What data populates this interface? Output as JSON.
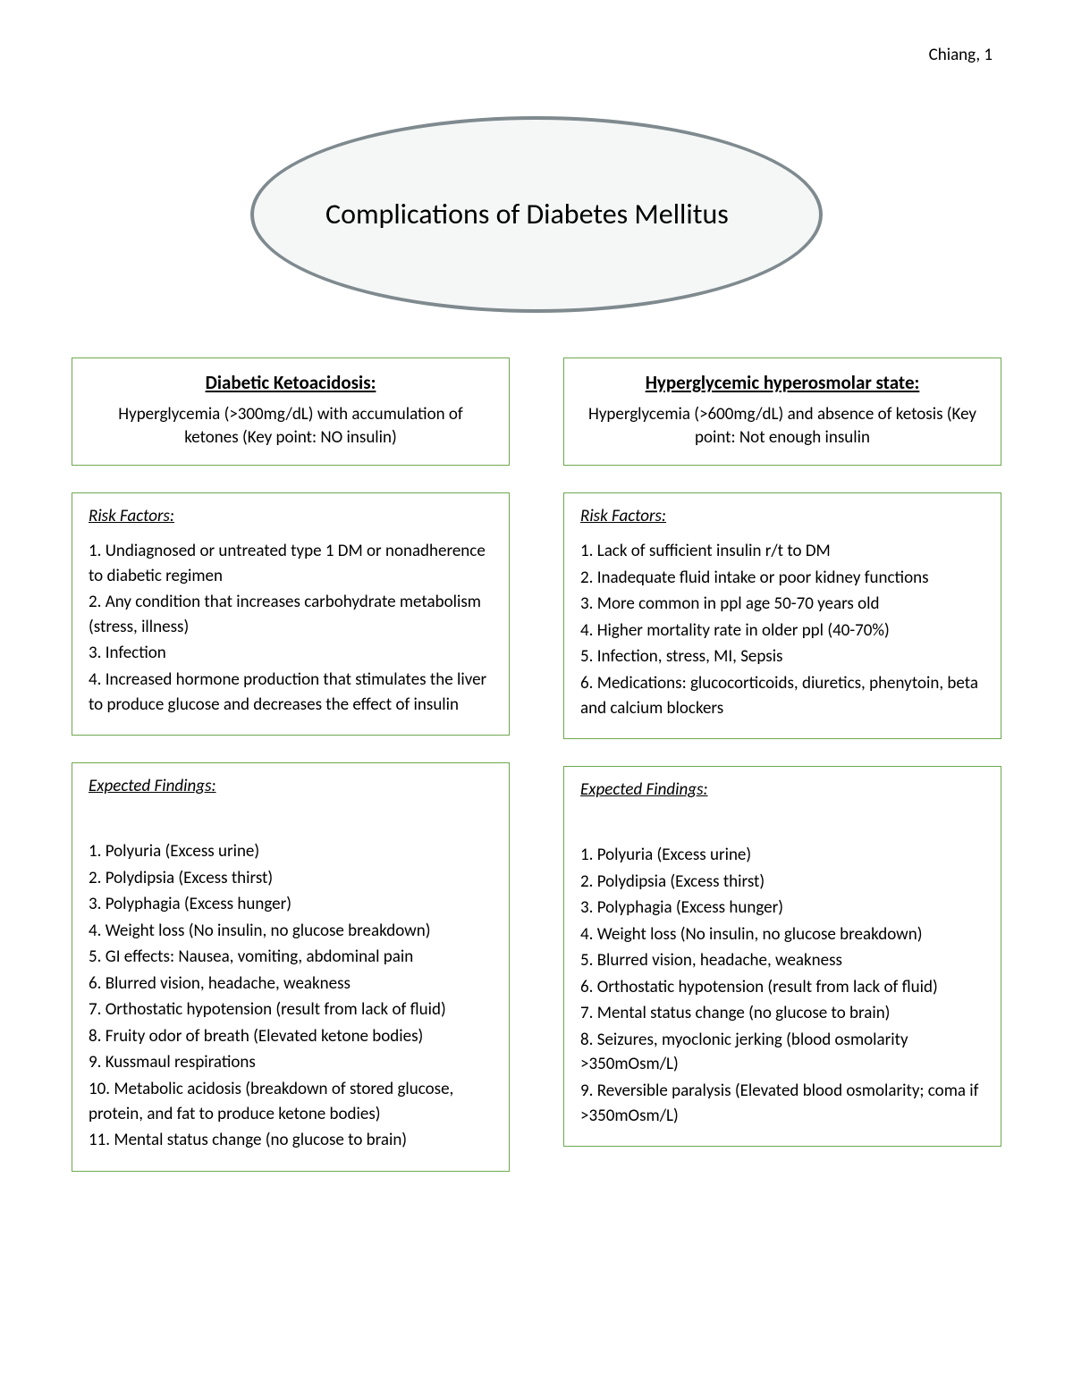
{
  "header": {
    "text": "Chiang, 1"
  },
  "title": {
    "text": "Complications of Diabetes Mellitus"
  },
  "colors": {
    "ellipse_border": "#7f8a8f",
    "ellipse_fill": "#f5f7f7",
    "box_border": "#6fa84f",
    "text": "#000000",
    "background": "#ffffff"
  },
  "left": {
    "def": {
      "title": "Diabetic Ketoacidosis:",
      "desc": "Hyperglycemia (>300mg/dL) with accumulation of ketones (Key point: NO insulin)"
    },
    "risk": {
      "title": "Risk Factors:",
      "items": [
        "1. Undiagnosed or untreated type 1 DM or nonadherence to diabetic regimen",
        "2. Any condition that increases carbohydrate metabolism (stress, illness)",
        "3. Infection",
        "4. Increased hormone production that stimulates the liver to produce glucose and decreases the effect of insulin"
      ]
    },
    "findings": {
      "title": "Expected Findings:",
      "items": [
        "1. Polyuria (Excess urine)",
        "2. Polydipsia (Excess thirst)",
        "3. Polyphagia (Excess hunger)",
        "4. Weight loss (No insulin, no glucose breakdown)",
        "5. GI effects: Nausea, vomiting, abdominal pain",
        "6. Blurred vision, headache, weakness",
        "7. Orthostatic hypotension (result from lack of fluid)",
        "8. Fruity odor of breath (Elevated ketone bodies)",
        "9. Kussmaul respirations",
        "10. Metabolic acidosis (breakdown of stored glucose, protein, and fat to produce ketone bodies)",
        "11. Mental status change (no glucose to brain)"
      ]
    }
  },
  "right": {
    "def": {
      "title": "Hyperglycemic hyperosmolar state:",
      "desc": "Hyperglycemia (>600mg/dL) and absence of ketosis (Key point: Not enough insulin"
    },
    "risk": {
      "title": "Risk Factors:",
      "items": [
        "1. Lack of sufficient insulin r/t to DM",
        "2. Inadequate fluid intake or poor kidney functions",
        "3. More common in ppl age 50-70 years old",
        "4. Higher mortality rate in older ppl (40-70%)",
        "5. Infection, stress, MI, Sepsis",
        "6. Medications: glucocorticoids, diuretics, phenytoin, beta and calcium blockers"
      ]
    },
    "findings": {
      "title": "Expected Findings:",
      "items": [
        "1. Polyuria (Excess urine)",
        "2. Polydipsia (Excess thirst)",
        "3. Polyphagia (Excess hunger)",
        "4. Weight loss (No insulin, no glucose breakdown)",
        "5. Blurred vision, headache, weakness",
        "6. Orthostatic hypotension (result from lack of fluid)",
        "7. Mental status change (no glucose to brain)",
        "8. Seizures, myoclonic jerking (blood osmolarity >350mOsm/L)",
        "9. Reversible paralysis (Elevated blood osmolarity; coma if >350mOsm/L)"
      ]
    }
  }
}
